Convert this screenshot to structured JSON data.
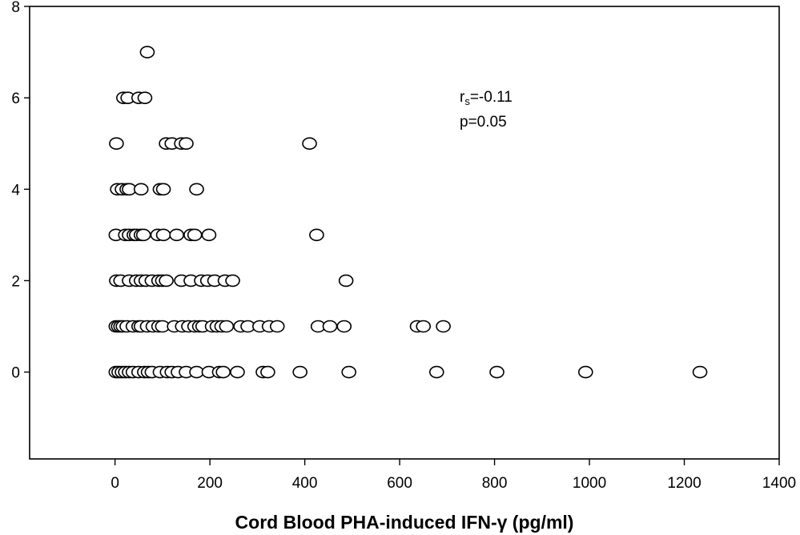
{
  "chart_data": {
    "type": "scatter",
    "title": "",
    "xlabel": "Cord Blood PHA-induced IFN-γ (pg/ml)",
    "ylabel": "",
    "xlim": [
      -180,
      1400
    ],
    "ylim": [
      -1.9,
      8
    ],
    "x_ticks": [
      "0",
      "200",
      "400",
      "600",
      "800",
      "1000",
      "1200",
      "1400"
    ],
    "y_ticks": [
      "0",
      "2",
      "4",
      "6",
      "8"
    ],
    "grid": false,
    "legend": "none",
    "marker": "open-circle",
    "annotation": {
      "stat_symbol": "r",
      "stat_subscript": "s",
      "stat_value": "=-0.11",
      "p_text": "p=0.05"
    },
    "points": [
      {
        "x": 68,
        "y": 7
      },
      {
        "x": 18,
        "y": 6
      },
      {
        "x": 27,
        "y": 6
      },
      {
        "x": 50,
        "y": 6
      },
      {
        "x": 63,
        "y": 6
      },
      {
        "x": 3,
        "y": 5
      },
      {
        "x": 108,
        "y": 5
      },
      {
        "x": 120,
        "y": 5
      },
      {
        "x": 140,
        "y": 5
      },
      {
        "x": 150,
        "y": 5
      },
      {
        "x": 410,
        "y": 5
      },
      {
        "x": 5,
        "y": 4
      },
      {
        "x": 15,
        "y": 4
      },
      {
        "x": 25,
        "y": 4
      },
      {
        "x": 30,
        "y": 4
      },
      {
        "x": 55,
        "y": 4
      },
      {
        "x": 95,
        "y": 4
      },
      {
        "x": 102,
        "y": 4
      },
      {
        "x": 172,
        "y": 4
      },
      {
        "x": 2,
        "y": 3
      },
      {
        "x": 22,
        "y": 3
      },
      {
        "x": 30,
        "y": 3
      },
      {
        "x": 40,
        "y": 3
      },
      {
        "x": 45,
        "y": 3
      },
      {
        "x": 55,
        "y": 3
      },
      {
        "x": 60,
        "y": 3
      },
      {
        "x": 90,
        "y": 3
      },
      {
        "x": 102,
        "y": 3
      },
      {
        "x": 130,
        "y": 3
      },
      {
        "x": 160,
        "y": 3
      },
      {
        "x": 168,
        "y": 3
      },
      {
        "x": 198,
        "y": 3
      },
      {
        "x": 425,
        "y": 3
      },
      {
        "x": 3,
        "y": 2
      },
      {
        "x": 12,
        "y": 2
      },
      {
        "x": 30,
        "y": 2
      },
      {
        "x": 45,
        "y": 2
      },
      {
        "x": 55,
        "y": 2
      },
      {
        "x": 65,
        "y": 2
      },
      {
        "x": 78,
        "y": 2
      },
      {
        "x": 92,
        "y": 2
      },
      {
        "x": 100,
        "y": 2
      },
      {
        "x": 108,
        "y": 2
      },
      {
        "x": 140,
        "y": 2
      },
      {
        "x": 160,
        "y": 2
      },
      {
        "x": 182,
        "y": 2
      },
      {
        "x": 195,
        "y": 2
      },
      {
        "x": 210,
        "y": 2
      },
      {
        "x": 232,
        "y": 2
      },
      {
        "x": 248,
        "y": 2
      },
      {
        "x": 487,
        "y": 2
      },
      {
        "x": 2,
        "y": 1
      },
      {
        "x": 7,
        "y": 1
      },
      {
        "x": 12,
        "y": 1
      },
      {
        "x": 17,
        "y": 1
      },
      {
        "x": 25,
        "y": 1
      },
      {
        "x": 38,
        "y": 1
      },
      {
        "x": 50,
        "y": 1
      },
      {
        "x": 55,
        "y": 1
      },
      {
        "x": 68,
        "y": 1
      },
      {
        "x": 80,
        "y": 1
      },
      {
        "x": 92,
        "y": 1
      },
      {
        "x": 100,
        "y": 1
      },
      {
        "x": 125,
        "y": 1
      },
      {
        "x": 142,
        "y": 1
      },
      {
        "x": 155,
        "y": 1
      },
      {
        "x": 168,
        "y": 1
      },
      {
        "x": 178,
        "y": 1
      },
      {
        "x": 185,
        "y": 1
      },
      {
        "x": 205,
        "y": 1
      },
      {
        "x": 215,
        "y": 1
      },
      {
        "x": 225,
        "y": 1
      },
      {
        "x": 235,
        "y": 1
      },
      {
        "x": 265,
        "y": 1
      },
      {
        "x": 280,
        "y": 1
      },
      {
        "x": 305,
        "y": 1
      },
      {
        "x": 325,
        "y": 1
      },
      {
        "x": 342,
        "y": 1
      },
      {
        "x": 428,
        "y": 1
      },
      {
        "x": 453,
        "y": 1
      },
      {
        "x": 483,
        "y": 1
      },
      {
        "x": 637,
        "y": 1
      },
      {
        "x": 650,
        "y": 1
      },
      {
        "x": 692,
        "y": 1
      },
      {
        "x": 2,
        "y": 0
      },
      {
        "x": 8,
        "y": 0
      },
      {
        "x": 15,
        "y": 0
      },
      {
        "x": 22,
        "y": 0
      },
      {
        "x": 30,
        "y": 0
      },
      {
        "x": 38,
        "y": 0
      },
      {
        "x": 50,
        "y": 0
      },
      {
        "x": 62,
        "y": 0
      },
      {
        "x": 70,
        "y": 0
      },
      {
        "x": 78,
        "y": 0
      },
      {
        "x": 95,
        "y": 0
      },
      {
        "x": 110,
        "y": 0
      },
      {
        "x": 120,
        "y": 0
      },
      {
        "x": 133,
        "y": 0
      },
      {
        "x": 150,
        "y": 0
      },
      {
        "x": 172,
        "y": 0
      },
      {
        "x": 198,
        "y": 0
      },
      {
        "x": 220,
        "y": 0
      },
      {
        "x": 228,
        "y": 0
      },
      {
        "x": 258,
        "y": 0
      },
      {
        "x": 312,
        "y": 0
      },
      {
        "x": 322,
        "y": 0
      },
      {
        "x": 390,
        "y": 0
      },
      {
        "x": 493,
        "y": 0
      },
      {
        "x": 678,
        "y": 0
      },
      {
        "x": 805,
        "y": 0
      },
      {
        "x": 992,
        "y": 0
      },
      {
        "x": 1233,
        "y": 0
      }
    ]
  }
}
